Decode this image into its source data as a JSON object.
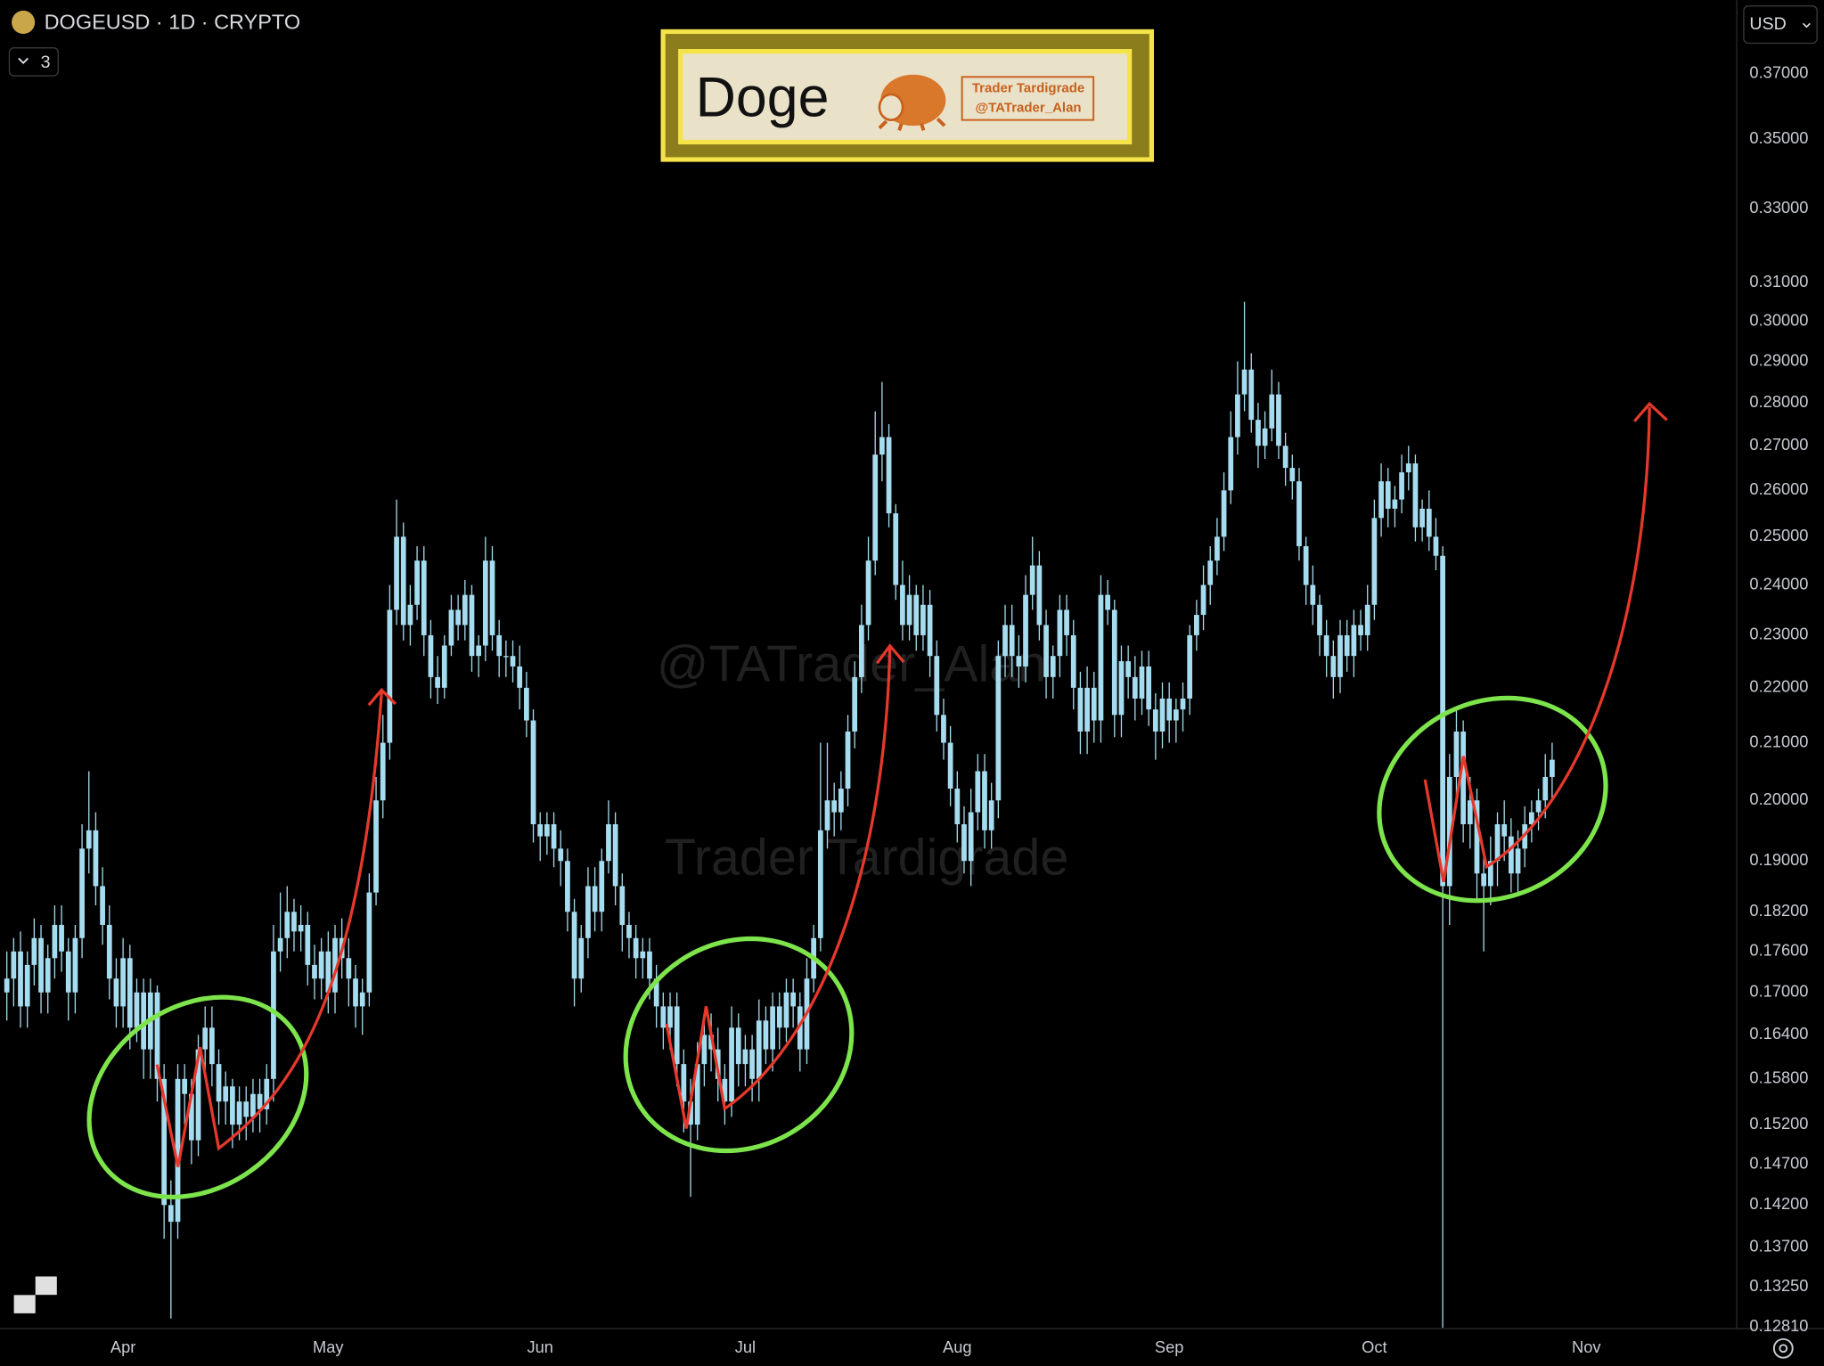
{
  "chart_data": {
    "type": "candlestick",
    "title": "DOGEUSD · 1D · CRYPTO",
    "indicators_collapsed": 3,
    "currency": "USD",
    "color": "#a6dcef",
    "log_scale": true,
    "grid": false,
    "xlim": [
      -1,
      253
    ],
    "ylim": [
      0.1279,
      0.3937
    ],
    "xticks": [
      {
        "value": 17,
        "label": "Apr"
      },
      {
        "value": 47,
        "label": "May"
      },
      {
        "value": 78,
        "label": "Jun"
      },
      {
        "value": 108,
        "label": "Jul"
      },
      {
        "value": 139,
        "label": "Aug"
      },
      {
        "value": 170,
        "label": "Sep"
      },
      {
        "value": 200,
        "label": "Oct"
      },
      {
        "value": 231,
        "label": "Nov"
      }
    ],
    "yticks": [
      {
        "value": 0.37,
        "label": "0.37000"
      },
      {
        "value": 0.35,
        "label": "0.35000"
      },
      {
        "value": 0.33,
        "label": "0.33000"
      },
      {
        "value": 0.31,
        "label": "0.31000"
      },
      {
        "value": 0.3,
        "label": "0.30000"
      },
      {
        "value": 0.29,
        "label": "0.29000"
      },
      {
        "value": 0.28,
        "label": "0.28000"
      },
      {
        "value": 0.27,
        "label": "0.27000"
      },
      {
        "value": 0.26,
        "label": "0.26000"
      },
      {
        "value": 0.25,
        "label": "0.25000"
      },
      {
        "value": 0.24,
        "label": "0.24000"
      },
      {
        "value": 0.23,
        "label": "0.23000"
      },
      {
        "value": 0.22,
        "label": "0.22000"
      },
      {
        "value": 0.21,
        "label": "0.21000"
      },
      {
        "value": 0.2,
        "label": "0.20000"
      },
      {
        "value": 0.19,
        "label": "0.19000"
      },
      {
        "value": 0.182,
        "label": "0.18200"
      },
      {
        "value": 0.176,
        "label": "0.17600"
      },
      {
        "value": 0.17,
        "label": "0.17000"
      },
      {
        "value": 0.164,
        "label": "0.16400"
      },
      {
        "value": 0.158,
        "label": "0.15800"
      },
      {
        "value": 0.152,
        "label": "0.15200"
      },
      {
        "value": 0.147,
        "label": "0.14700"
      },
      {
        "value": 0.142,
        "label": "0.14200"
      },
      {
        "value": 0.137,
        "label": "0.13700"
      },
      {
        "value": 0.1325,
        "label": "0.13250"
      },
      {
        "value": 0.1281,
        "label": "0.12810"
      }
    ],
    "open": [
      0.17,
      0.172,
      0.176,
      0.168,
      0.174,
      0.178,
      0.17,
      0.175,
      0.18,
      0.176,
      0.17,
      0.178,
      0.192,
      0.195,
      0.186,
      0.18,
      0.172,
      0.168,
      0.175,
      0.165,
      0.17,
      0.162,
      0.17,
      0.158,
      0.142,
      0.14,
      0.158,
      0.156,
      0.15,
      0.162,
      0.165,
      0.16,
      0.155,
      0.157,
      0.152,
      0.155,
      0.153,
      0.156,
      0.154,
      0.158,
      0.176,
      0.178,
      0.182,
      0.179,
      0.18,
      0.174,
      0.172,
      0.176,
      0.17,
      0.178,
      0.175,
      0.172,
      0.168,
      0.17,
      0.185,
      0.2,
      0.21,
      0.235,
      0.25,
      0.232,
      0.236,
      0.245,
      0.23,
      0.222,
      0.22,
      0.228,
      0.235,
      0.232,
      0.238,
      0.226,
      0.228,
      0.245,
      0.23,
      0.226,
      0.226,
      0.224,
      0.22,
      0.214,
      0.196,
      0.194,
      0.196,
      0.192,
      0.19,
      0.182,
      0.172,
      0.178,
      0.186,
      0.182,
      0.19,
      0.196,
      0.186,
      0.18,
      0.178,
      0.175,
      0.176,
      0.172,
      0.168,
      0.165,
      0.168,
      0.16,
      0.155,
      0.152,
      0.16,
      0.164,
      0.162,
      0.158,
      0.155,
      0.165,
      0.16,
      0.162,
      0.158,
      0.166,
      0.162,
      0.168,
      0.165,
      0.17,
      0.168,
      0.162,
      0.172,
      0.178,
      0.195,
      0.2,
      0.198,
      0.202,
      0.212,
      0.222,
      0.232,
      0.245,
      0.268,
      0.272,
      0.255,
      0.24,
      0.232,
      0.238,
      0.23,
      0.236,
      0.226,
      0.215,
      0.21,
      0.202,
      0.196,
      0.19,
      0.198,
      0.205,
      0.195,
      0.2,
      0.226,
      0.232,
      0.226,
      0.224,
      0.238,
      0.244,
      0.232,
      0.222,
      0.226,
      0.235,
      0.23,
      0.22,
      0.212,
      0.22,
      0.214,
      0.238,
      0.235,
      0.215,
      0.225,
      0.222,
      0.218,
      0.224,
      0.216,
      0.212,
      0.218,
      0.214,
      0.216,
      0.218,
      0.23,
      0.234,
      0.24,
      0.245,
      0.25,
      0.26,
      0.272,
      0.282,
      0.288,
      0.276,
      0.27,
      0.274,
      0.282,
      0.27,
      0.265,
      0.262,
      0.248,
      0.24,
      0.236,
      0.23,
      0.226,
      0.222,
      0.23,
      0.226,
      0.232,
      0.23,
      0.236,
      0.254,
      0.262,
      0.256,
      0.258,
      0.264,
      0.266,
      0.252,
      0.256,
      0.25,
      0.246,
      0.186,
      0.204,
      0.212,
      0.196,
      0.2,
      0.188,
      0.186,
      0.19,
      0.196,
      0.194,
      0.188,
      0.192,
      0.196,
      0.198,
      0.2,
      0.204
    ],
    "high": [
      0.176,
      0.178,
      0.179,
      0.176,
      0.181,
      0.18,
      0.177,
      0.183,
      0.183,
      0.178,
      0.18,
      0.196,
      0.205,
      0.198,
      0.189,
      0.183,
      0.175,
      0.178,
      0.177,
      0.172,
      0.172,
      0.172,
      0.171,
      0.16,
      0.145,
      0.16,
      0.16,
      0.158,
      0.164,
      0.168,
      0.168,
      0.162,
      0.159,
      0.158,
      0.157,
      0.157,
      0.158,
      0.158,
      0.16,
      0.18,
      0.185,
      0.186,
      0.184,
      0.183,
      0.182,
      0.177,
      0.178,
      0.179,
      0.18,
      0.181,
      0.178,
      0.174,
      0.172,
      0.188,
      0.204,
      0.215,
      0.24,
      0.258,
      0.253,
      0.24,
      0.248,
      0.248,
      0.233,
      0.226,
      0.23,
      0.238,
      0.238,
      0.241,
      0.24,
      0.23,
      0.25,
      0.248,
      0.233,
      0.229,
      0.229,
      0.228,
      0.223,
      0.216,
      0.198,
      0.198,
      0.198,
      0.195,
      0.192,
      0.184,
      0.18,
      0.189,
      0.189,
      0.192,
      0.2,
      0.198,
      0.188,
      0.182,
      0.18,
      0.178,
      0.178,
      0.174,
      0.17,
      0.17,
      0.17,
      0.162,
      0.158,
      0.163,
      0.166,
      0.167,
      0.165,
      0.16,
      0.168,
      0.167,
      0.164,
      0.164,
      0.169,
      0.168,
      0.17,
      0.17,
      0.172,
      0.172,
      0.17,
      0.175,
      0.18,
      0.21,
      0.21,
      0.203,
      0.205,
      0.215,
      0.225,
      0.236,
      0.25,
      0.278,
      0.285,
      0.275,
      0.257,
      0.245,
      0.242,
      0.24,
      0.24,
      0.239,
      0.229,
      0.218,
      0.213,
      0.205,
      0.199,
      0.202,
      0.208,
      0.208,
      0.203,
      0.229,
      0.236,
      0.236,
      0.23,
      0.242,
      0.25,
      0.247,
      0.235,
      0.228,
      0.238,
      0.238,
      0.233,
      0.223,
      0.224,
      0.223,
      0.242,
      0.241,
      0.237,
      0.228,
      0.228,
      0.226,
      0.227,
      0.227,
      0.219,
      0.221,
      0.221,
      0.218,
      0.221,
      0.232,
      0.237,
      0.244,
      0.248,
      0.254,
      0.264,
      0.278,
      0.29,
      0.305,
      0.292,
      0.28,
      0.278,
      0.288,
      0.285,
      0.273,
      0.268,
      0.265,
      0.25,
      0.244,
      0.238,
      0.233,
      0.229,
      0.233,
      0.233,
      0.235,
      0.235,
      0.24,
      0.258,
      0.266,
      0.265,
      0.261,
      0.268,
      0.27,
      0.268,
      0.258,
      0.26,
      0.254,
      0.248,
      0.208,
      0.216,
      0.214,
      0.204,
      0.202,
      0.191,
      0.194,
      0.198,
      0.2,
      0.197,
      0.195,
      0.199,
      0.2,
      0.202,
      0.208,
      0.21
    ],
    "low": [
      0.166,
      0.168,
      0.165,
      0.165,
      0.171,
      0.167,
      0.167,
      0.172,
      0.173,
      0.166,
      0.167,
      0.175,
      0.188,
      0.183,
      0.177,
      0.169,
      0.165,
      0.165,
      0.162,
      0.163,
      0.158,
      0.158,
      0.155,
      0.138,
      0.129,
      0.138,
      0.152,
      0.147,
      0.148,
      0.158,
      0.157,
      0.152,
      0.152,
      0.149,
      0.15,
      0.15,
      0.151,
      0.151,
      0.152,
      0.155,
      0.173,
      0.175,
      0.176,
      0.176,
      0.171,
      0.169,
      0.169,
      0.167,
      0.167,
      0.172,
      0.168,
      0.165,
      0.164,
      0.168,
      0.183,
      0.197,
      0.207,
      0.232,
      0.229,
      0.228,
      0.233,
      0.226,
      0.218,
      0.217,
      0.218,
      0.226,
      0.229,
      0.229,
      0.223,
      0.222,
      0.225,
      0.227,
      0.222,
      0.222,
      0.221,
      0.216,
      0.211,
      0.193,
      0.19,
      0.191,
      0.189,
      0.186,
      0.179,
      0.168,
      0.17,
      0.175,
      0.179,
      0.179,
      0.188,
      0.183,
      0.176,
      0.175,
      0.172,
      0.172,
      0.169,
      0.165,
      0.162,
      0.162,
      0.157,
      0.151,
      0.143,
      0.15,
      0.157,
      0.159,
      0.155,
      0.152,
      0.153,
      0.157,
      0.157,
      0.155,
      0.155,
      0.16,
      0.159,
      0.162,
      0.163,
      0.165,
      0.159,
      0.16,
      0.17,
      0.176,
      0.192,
      0.194,
      0.195,
      0.199,
      0.209,
      0.219,
      0.229,
      0.242,
      0.262,
      0.252,
      0.237,
      0.229,
      0.229,
      0.227,
      0.227,
      0.222,
      0.212,
      0.207,
      0.199,
      0.193,
      0.188,
      0.186,
      0.195,
      0.192,
      0.192,
      0.197,
      0.222,
      0.222,
      0.22,
      0.221,
      0.235,
      0.229,
      0.218,
      0.218,
      0.222,
      0.226,
      0.216,
      0.208,
      0.208,
      0.21,
      0.21,
      0.232,
      0.211,
      0.211,
      0.218,
      0.214,
      0.215,
      0.213,
      0.207,
      0.209,
      0.21,
      0.21,
      0.212,
      0.215,
      0.227,
      0.231,
      0.236,
      0.242,
      0.247,
      0.257,
      0.268,
      0.278,
      0.273,
      0.265,
      0.267,
      0.271,
      0.267,
      0.261,
      0.258,
      0.245,
      0.236,
      0.232,
      0.226,
      0.222,
      0.218,
      0.219,
      0.223,
      0.222,
      0.227,
      0.227,
      0.233,
      0.25,
      0.252,
      0.252,
      0.255,
      0.26,
      0.249,
      0.249,
      0.247,
      0.243,
      0.128,
      0.18,
      0.2,
      0.193,
      0.192,
      0.184,
      0.176,
      0.183,
      0.186,
      0.19,
      0.185,
      0.185,
      0.189,
      0.193,
      0.195,
      0.197,
      0.2
    ],
    "close": [
      0.172,
      0.176,
      0.168,
      0.174,
      0.178,
      0.17,
      0.175,
      0.18,
      0.176,
      0.17,
      0.178,
      0.192,
      0.195,
      0.186,
      0.18,
      0.172,
      0.168,
      0.175,
      0.165,
      0.17,
      0.162,
      0.17,
      0.158,
      0.142,
      0.14,
      0.158,
      0.156,
      0.15,
      0.162,
      0.165,
      0.16,
      0.155,
      0.157,
      0.152,
      0.155,
      0.153,
      0.156,
      0.154,
      0.158,
      0.176,
      0.178,
      0.182,
      0.179,
      0.18,
      0.174,
      0.172,
      0.176,
      0.17,
      0.178,
      0.175,
      0.172,
      0.168,
      0.17,
      0.185,
      0.2,
      0.21,
      0.235,
      0.25,
      0.232,
      0.236,
      0.245,
      0.23,
      0.222,
      0.22,
      0.228,
      0.235,
      0.232,
      0.238,
      0.226,
      0.228,
      0.245,
      0.23,
      0.226,
      0.226,
      0.224,
      0.22,
      0.214,
      0.196,
      0.194,
      0.196,
      0.192,
      0.19,
      0.182,
      0.172,
      0.178,
      0.186,
      0.182,
      0.19,
      0.196,
      0.186,
      0.18,
      0.178,
      0.175,
      0.176,
      0.172,
      0.168,
      0.165,
      0.168,
      0.16,
      0.155,
      0.152,
      0.16,
      0.164,
      0.162,
      0.158,
      0.155,
      0.165,
      0.16,
      0.162,
      0.158,
      0.166,
      0.162,
      0.168,
      0.165,
      0.17,
      0.168,
      0.162,
      0.172,
      0.178,
      0.195,
      0.2,
      0.198,
      0.202,
      0.212,
      0.222,
      0.232,
      0.245,
      0.268,
      0.272,
      0.255,
      0.24,
      0.232,
      0.238,
      0.23,
      0.236,
      0.226,
      0.215,
      0.21,
      0.202,
      0.196,
      0.19,
      0.198,
      0.205,
      0.195,
      0.2,
      0.226,
      0.232,
      0.226,
      0.224,
      0.238,
      0.244,
      0.232,
      0.222,
      0.226,
      0.235,
      0.23,
      0.22,
      0.212,
      0.22,
      0.214,
      0.238,
      0.235,
      0.215,
      0.225,
      0.222,
      0.218,
      0.224,
      0.216,
      0.212,
      0.218,
      0.214,
      0.216,
      0.218,
      0.23,
      0.234,
      0.24,
      0.245,
      0.25,
      0.26,
      0.272,
      0.282,
      0.288,
      0.276,
      0.27,
      0.274,
      0.282,
      0.27,
      0.265,
      0.262,
      0.248,
      0.24,
      0.236,
      0.23,
      0.226,
      0.222,
      0.23,
      0.226,
      0.232,
      0.23,
      0.236,
      0.254,
      0.262,
      0.256,
      0.258,
      0.264,
      0.266,
      0.252,
      0.256,
      0.25,
      0.246,
      0.186,
      0.204,
      0.212,
      0.196,
      0.2,
      0.188,
      0.186,
      0.19,
      0.196,
      0.194,
      0.188,
      0.192,
      0.196,
      0.198,
      0.2,
      0.204,
      0.207
    ],
    "banner": {
      "title": "Doge",
      "author": "Trader Tardigrade",
      "handle": "@TATrader_Alan"
    },
    "watermarks": [
      "@TATrader_Alan",
      "Trader Tardigrade"
    ]
  }
}
